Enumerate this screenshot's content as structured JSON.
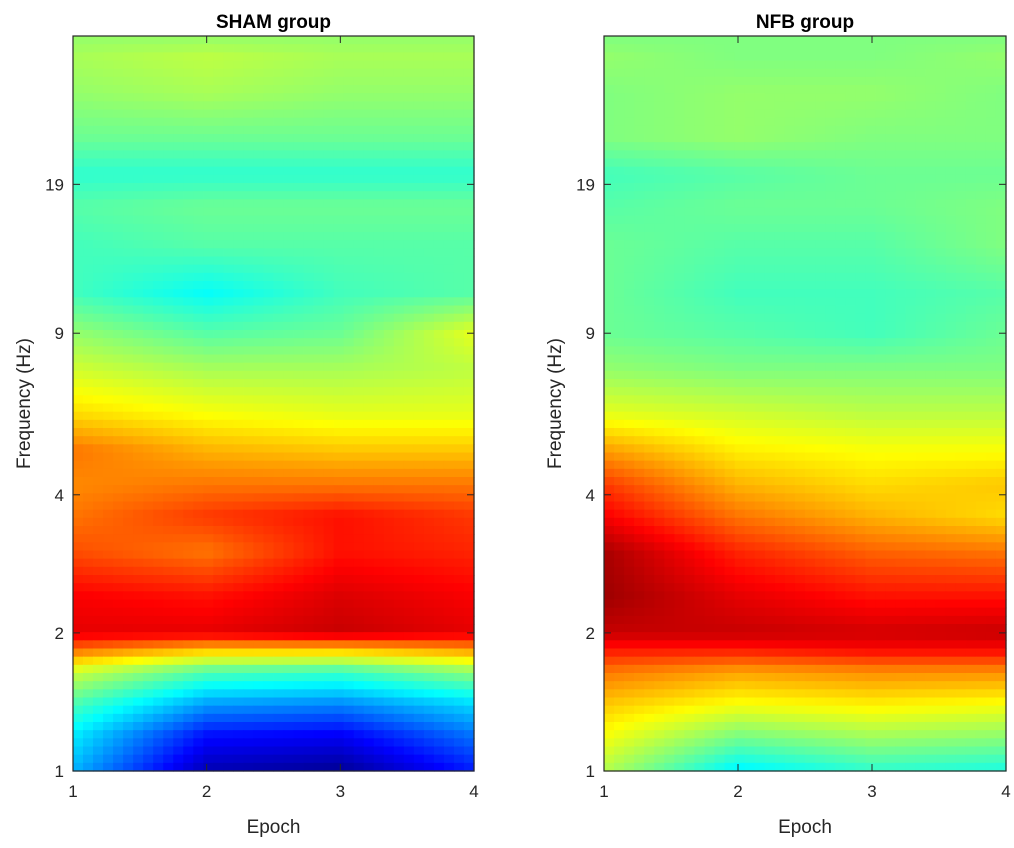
{
  "chart_data": [
    {
      "type": "heatmap",
      "title": "SHAM group",
      "xlabel": "Epoch",
      "ylabel": "Frequency (Hz)",
      "x": [
        1,
        2,
        3,
        4
      ],
      "xlim": [
        1,
        4
      ],
      "x_ticks": [
        "1",
        "2",
        "3",
        "4"
      ],
      "y_scale": "log",
      "y_ticks": [
        "1",
        "2",
        "4",
        "9",
        "19"
      ],
      "y_tick_values": [
        1,
        2,
        4,
        9,
        19
      ],
      "ylim": [
        1,
        40
      ],
      "colormap": "jet",
      "rows": [
        {
          "freq": 1,
          "values": [
            0.3,
            0.05,
            0.02,
            0.15
          ]
        },
        {
          "freq": 1.2,
          "values": [
            0.36,
            0.14,
            0.12,
            0.24
          ]
        },
        {
          "freq": 1.4,
          "values": [
            0.45,
            0.28,
            0.26,
            0.34
          ]
        },
        {
          "freq": 1.65,
          "values": [
            0.58,
            0.46,
            0.44,
            0.52
          ]
        },
        {
          "freq": 1.85,
          "values": [
            0.78,
            0.7,
            0.7,
            0.74
          ]
        },
        {
          "freq": 2,
          "values": [
            0.9,
            0.9,
            0.93,
            0.9
          ]
        },
        {
          "freq": 2.4,
          "values": [
            0.88,
            0.86,
            0.91,
            0.88
          ]
        },
        {
          "freq": 3,
          "values": [
            0.8,
            0.76,
            0.86,
            0.84
          ]
        },
        {
          "freq": 3.6,
          "values": [
            0.76,
            0.82,
            0.86,
            0.82
          ]
        },
        {
          "freq": 4.2,
          "values": [
            0.74,
            0.76,
            0.76,
            0.76
          ]
        },
        {
          "freq": 5,
          "values": [
            0.76,
            0.7,
            0.68,
            0.68
          ]
        },
        {
          "freq": 6,
          "values": [
            0.66,
            0.62,
            0.6,
            0.6
          ]
        },
        {
          "freq": 7.5,
          "values": [
            0.58,
            0.54,
            0.54,
            0.56
          ]
        },
        {
          "freq": 9,
          "values": [
            0.52,
            0.46,
            0.48,
            0.6
          ]
        },
        {
          "freq": 11,
          "values": [
            0.44,
            0.38,
            0.44,
            0.46
          ]
        },
        {
          "freq": 14,
          "values": [
            0.44,
            0.46,
            0.46,
            0.46
          ]
        },
        {
          "freq": 17,
          "values": [
            0.46,
            0.48,
            0.48,
            0.48
          ]
        },
        {
          "freq": 20,
          "values": [
            0.42,
            0.42,
            0.42,
            0.42
          ]
        },
        {
          "freq": 24,
          "values": [
            0.48,
            0.48,
            0.48,
            0.48
          ]
        },
        {
          "freq": 30,
          "values": [
            0.52,
            0.54,
            0.52,
            0.52
          ]
        },
        {
          "freq": 36,
          "values": [
            0.54,
            0.56,
            0.54,
            0.54
          ]
        },
        {
          "freq": 40,
          "values": [
            0.52,
            0.52,
            0.52,
            0.52
          ]
        }
      ]
    },
    {
      "type": "heatmap",
      "title": "NFB group",
      "xlabel": "Epoch",
      "ylabel": "Frequency (Hz)",
      "x": [
        1,
        2,
        3,
        4
      ],
      "xlim": [
        1,
        4
      ],
      "x_ticks": [
        "1",
        "2",
        "3",
        "4"
      ],
      "y_scale": "log",
      "y_ticks": [
        "1",
        "2",
        "4",
        "9",
        "19"
      ],
      "y_tick_values": [
        1,
        2,
        4,
        9,
        19
      ],
      "ylim": [
        1,
        40
      ],
      "colormap": "jet",
      "rows": [
        {
          "freq": 1,
          "values": [
            0.55,
            0.36,
            0.42,
            0.4
          ]
        },
        {
          "freq": 1.2,
          "values": [
            0.62,
            0.5,
            0.54,
            0.52
          ]
        },
        {
          "freq": 1.4,
          "values": [
            0.68,
            0.62,
            0.64,
            0.62
          ]
        },
        {
          "freq": 1.65,
          "values": [
            0.76,
            0.72,
            0.74,
            0.74
          ]
        },
        {
          "freq": 1.85,
          "values": [
            0.86,
            0.86,
            0.88,
            0.88
          ]
        },
        {
          "freq": 2,
          "values": [
            0.93,
            0.93,
            0.92,
            0.93
          ]
        },
        {
          "freq": 2.4,
          "values": [
            0.97,
            0.9,
            0.86,
            0.86
          ]
        },
        {
          "freq": 3,
          "values": [
            0.96,
            0.84,
            0.78,
            0.76
          ]
        },
        {
          "freq": 3.6,
          "values": [
            0.88,
            0.76,
            0.7,
            0.66
          ]
        },
        {
          "freq": 4.2,
          "values": [
            0.82,
            0.7,
            0.66,
            0.68
          ]
        },
        {
          "freq": 5,
          "values": [
            0.72,
            0.64,
            0.62,
            0.62
          ]
        },
        {
          "freq": 6,
          "values": [
            0.6,
            0.58,
            0.56,
            0.56
          ]
        },
        {
          "freq": 7.5,
          "values": [
            0.52,
            0.5,
            0.5,
            0.5
          ]
        },
        {
          "freq": 9,
          "values": [
            0.48,
            0.46,
            0.44,
            0.48
          ]
        },
        {
          "freq": 11,
          "values": [
            0.48,
            0.44,
            0.44,
            0.46
          ]
        },
        {
          "freq": 14,
          "values": [
            0.48,
            0.46,
            0.46,
            0.5
          ]
        },
        {
          "freq": 17,
          "values": [
            0.46,
            0.48,
            0.48,
            0.5
          ]
        },
        {
          "freq": 20,
          "values": [
            0.44,
            0.46,
            0.48,
            0.48
          ]
        },
        {
          "freq": 24,
          "values": [
            0.5,
            0.52,
            0.5,
            0.5
          ]
        },
        {
          "freq": 30,
          "values": [
            0.5,
            0.52,
            0.52,
            0.5
          ]
        },
        {
          "freq": 36,
          "values": [
            0.52,
            0.5,
            0.5,
            0.52
          ]
        },
        {
          "freq": 40,
          "values": [
            0.5,
            0.5,
            0.5,
            0.5
          ]
        }
      ]
    }
  ]
}
